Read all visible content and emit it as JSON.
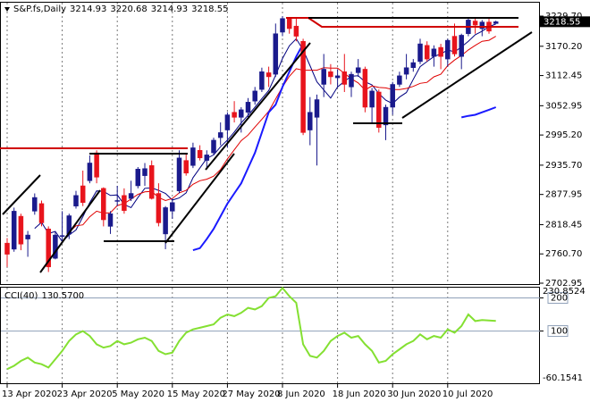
{
  "chart_data": [
    {
      "type": "candlestick",
      "title": "S&P.fs,Daily",
      "categories": [
        "13 Apr 2020",
        null,
        null,
        null,
        null,
        null,
        null,
        null,
        "23 Apr 2020",
        null,
        null,
        null,
        null,
        null,
        null,
        null,
        "5 May 2020",
        null,
        null,
        null,
        null,
        null,
        null,
        null,
        "15 May 2020",
        null,
        null,
        null,
        null,
        null,
        null,
        null,
        "27 May 2020",
        null,
        null,
        null,
        null,
        null,
        null,
        null,
        "8 Jun 2020",
        null,
        null,
        null,
        null,
        null,
        null,
        null,
        "18 Jun 2020",
        null,
        null,
        null,
        null,
        null,
        null,
        null,
        "30 Jun 2020",
        null,
        null,
        null,
        null,
        null,
        null,
        null,
        "10 Jul 2020",
        null,
        null,
        null,
        null,
        null,
        null,
        null
      ],
      "open": [
        2782,
        2770,
        2835,
        2790,
        2845,
        2860,
        2810,
        2752,
        2795,
        2800,
        2855,
        2895,
        2905,
        2960,
        2890,
        2815,
        2865,
        2876,
        2870,
        2895,
        2915,
        2935,
        2880,
        2800,
        2845,
        2885,
        2945,
        2935,
        2965,
        2945,
        2960,
        2990,
        3005,
        3040,
        3030,
        3040,
        3062,
        3085,
        3118,
        3115,
        3198,
        3225,
        3210,
        3180,
        3005,
        3030,
        3095,
        3120,
        3108,
        3120,
        3090,
        3118,
        3125,
        3050,
        3080,
        3015,
        3050,
        3095,
        3115,
        3128,
        3140,
        3172,
        3150,
        3168,
        3145,
        3190,
        3150,
        3195,
        3220,
        3205,
        3218,
        3214.93
      ],
      "high": [
        2792,
        2852,
        2840,
        2806,
        2880,
        2866,
        2815,
        2805,
        2845,
        2840,
        2885,
        2925,
        2955,
        2965,
        2892,
        2845,
        2895,
        2890,
        2905,
        2932,
        2940,
        2945,
        2900,
        2855,
        2870,
        2965,
        2960,
        2980,
        2975,
        2965,
        2990,
        3020,
        3040,
        3062,
        3050,
        3068,
        3090,
        3128,
        3130,
        3215,
        3229.7,
        3228,
        3225,
        3185,
        3070,
        3075,
        3155,
        3135,
        3125,
        3155,
        3120,
        3145,
        3130,
        3088,
        3085,
        3055,
        3100,
        3120,
        3155,
        3145,
        3185,
        3180,
        3172,
        3175,
        3185,
        3215,
        3195,
        3228,
        3225,
        3222,
        3225,
        3220.68
      ],
      "low": [
        2735,
        2765,
        2768,
        2755,
        2838,
        2815,
        2725,
        2750,
        2785,
        2790,
        2850,
        2855,
        2900,
        2900,
        2815,
        2800,
        2855,
        2840,
        2865,
        2890,
        2895,
        2868,
        2815,
        2770,
        2830,
        2880,
        2915,
        2930,
        2945,
        2930,
        2955,
        2975,
        2970,
        3020,
        3000,
        3030,
        3055,
        3080,
        3090,
        3110,
        3190,
        3195,
        3180,
        2995,
        2975,
        2935,
        3070,
        3095,
        3090,
        3080,
        3070,
        3110,
        3040,
        3020,
        3000,
        2985,
        3035,
        3090,
        3105,
        3120,
        3135,
        3140,
        3130,
        3125,
        3130,
        3150,
        3125,
        3190,
        3195,
        3190,
        3195,
        3214.93
      ],
      "close": [
        2760,
        2845,
        2780,
        2798,
        2872,
        2822,
        2735,
        2798,
        2797,
        2836,
        2876,
        2862,
        2940,
        2912,
        2828,
        2840,
        2866,
        2846,
        2880,
        2928,
        2929,
        2870,
        2822,
        2852,
        2862,
        2950,
        2920,
        2970,
        2950,
        2956,
        2985,
        3000,
        3035,
        3030,
        3045,
        3060,
        3082,
        3120,
        3110,
        3195,
        3225,
        3205,
        3190,
        3000,
        3040,
        3065,
        3125,
        3110,
        3112,
        3095,
        3115,
        3128,
        3050,
        3082,
        3010,
        3050,
        3095,
        3112,
        3128,
        3138,
        3175,
        3145,
        3165,
        3150,
        3182,
        3155,
        3192,
        3222,
        3212,
        3218,
        3200,
        3218.55
      ],
      "up_color": "#1a1a8c",
      "down_color": "#e8141c",
      "overlays": [
        {
          "color": "#000080",
          "width": 1,
          "values": [
            null,
            null,
            null,
            null,
            2811,
            2823,
            2801,
            2805,
            2785,
            2798,
            2808,
            2834,
            2862,
            2885,
            2884,
            2876,
            2877,
            2858,
            2852,
            2872,
            2890,
            2891,
            2886,
            2880,
            2867,
            2871,
            2881,
            2911,
            2930,
            2949,
            2956,
            2972,
            2985,
            3001,
            3019,
            3034,
            3050,
            3067,
            3083,
            3113,
            3146,
            3171,
            3185,
            3163,
            3132,
            3100,
            3084,
            3068,
            3090,
            3101,
            3111,
            3112,
            3100,
            3094,
            3077,
            3064,
            3057,
            3070,
            3079,
            3105,
            3130,
            3140,
            3150,
            3155,
            3163,
            3159,
            3169,
            3180,
            3193,
            3200,
            3209,
            3214
          ]
        },
        {
          "color": "#e00000",
          "width": 1,
          "values": [
            null,
            null,
            null,
            null,
            null,
            null,
            null,
            null,
            null,
            2804,
            2816,
            2818,
            2834,
            2845,
            2841,
            2842,
            2856,
            2860,
            2869,
            2878,
            2883,
            2884,
            2872,
            2866,
            2870,
            2881,
            2886,
            2898,
            2905,
            2908,
            2914,
            2927,
            2948,
            2966,
            2984,
            2995,
            3011,
            3026,
            3042,
            3066,
            3090,
            3111,
            3126,
            3123,
            3123,
            3123,
            3128,
            3127,
            3127,
            3117,
            3106,
            3098,
            3084,
            3092,
            3089,
            3088,
            3085,
            3085,
            3087,
            3091,
            3097,
            3099,
            3110,
            3115,
            3132,
            3143,
            3152,
            3163,
            3172,
            3180,
            3182,
            3190
          ]
        },
        {
          "color": "#1a1aff",
          "width": 2,
          "values": [
            null,
            null,
            null,
            null,
            null,
            null,
            null,
            null,
            null,
            null,
            null,
            null,
            null,
            null,
            null,
            null,
            null,
            null,
            null,
            null,
            null,
            null,
            null,
            null,
            null,
            null,
            null,
            2768,
            2772,
            2790,
            2810,
            2835,
            2860,
            2880,
            2900,
            2930,
            2960,
            3000,
            3040,
            3055,
            3090,
            3120,
            3150,
            3175,
            null,
            null,
            null,
            null,
            null,
            null,
            null,
            null,
            null,
            null,
            null,
            null,
            null,
            null,
            null,
            null,
            null,
            null,
            null,
            null,
            null,
            null,
            3030,
            3033,
            3035,
            3040,
            3045,
            3050
          ]
        }
      ],
      "ylim": [
        2701.2,
        3254.4
      ],
      "yticks": [
        {
          "value": 3229.7,
          "label": "3229.70"
        },
        {
          "value": 3170.2,
          "label": "3170.20"
        },
        3112.45,
        3052.95,
        {
          "value": 2995.2,
          "label": "2995.20"
        },
        {
          "value": 2935.7,
          "label": "2935.70"
        },
        2877.95,
        2818.45,
        {
          "value": 2760.7,
          "label": "2760.70"
        },
        2702.95
      ],
      "grid": true
    },
    {
      "type": "line",
      "title": "CCI(40)",
      "last_value_label": "130.5700",
      "color": "#84e032",
      "values": [
        -15,
        -5,
        10,
        20,
        5,
        0,
        -10,
        15,
        40,
        70,
        90,
        100,
        85,
        60,
        50,
        55,
        70,
        60,
        65,
        75,
        80,
        70,
        40,
        30,
        35,
        70,
        95,
        105,
        110,
        115,
        120,
        140,
        150,
        145,
        155,
        170,
        165,
        175,
        200,
        205,
        230,
        205,
        185,
        60,
        25,
        20,
        40,
        70,
        85,
        95,
        80,
        85,
        60,
        40,
        5,
        10,
        30,
        45,
        60,
        70,
        90,
        75,
        85,
        80,
        105,
        95,
        115,
        150,
        130,
        133,
        132,
        130.57
      ],
      "ylim": [
        -60.1541,
        230.8524
      ],
      "yticks": [
        200,
        100
      ],
      "levels_color": "#8fa0b8"
    }
  ]
}
